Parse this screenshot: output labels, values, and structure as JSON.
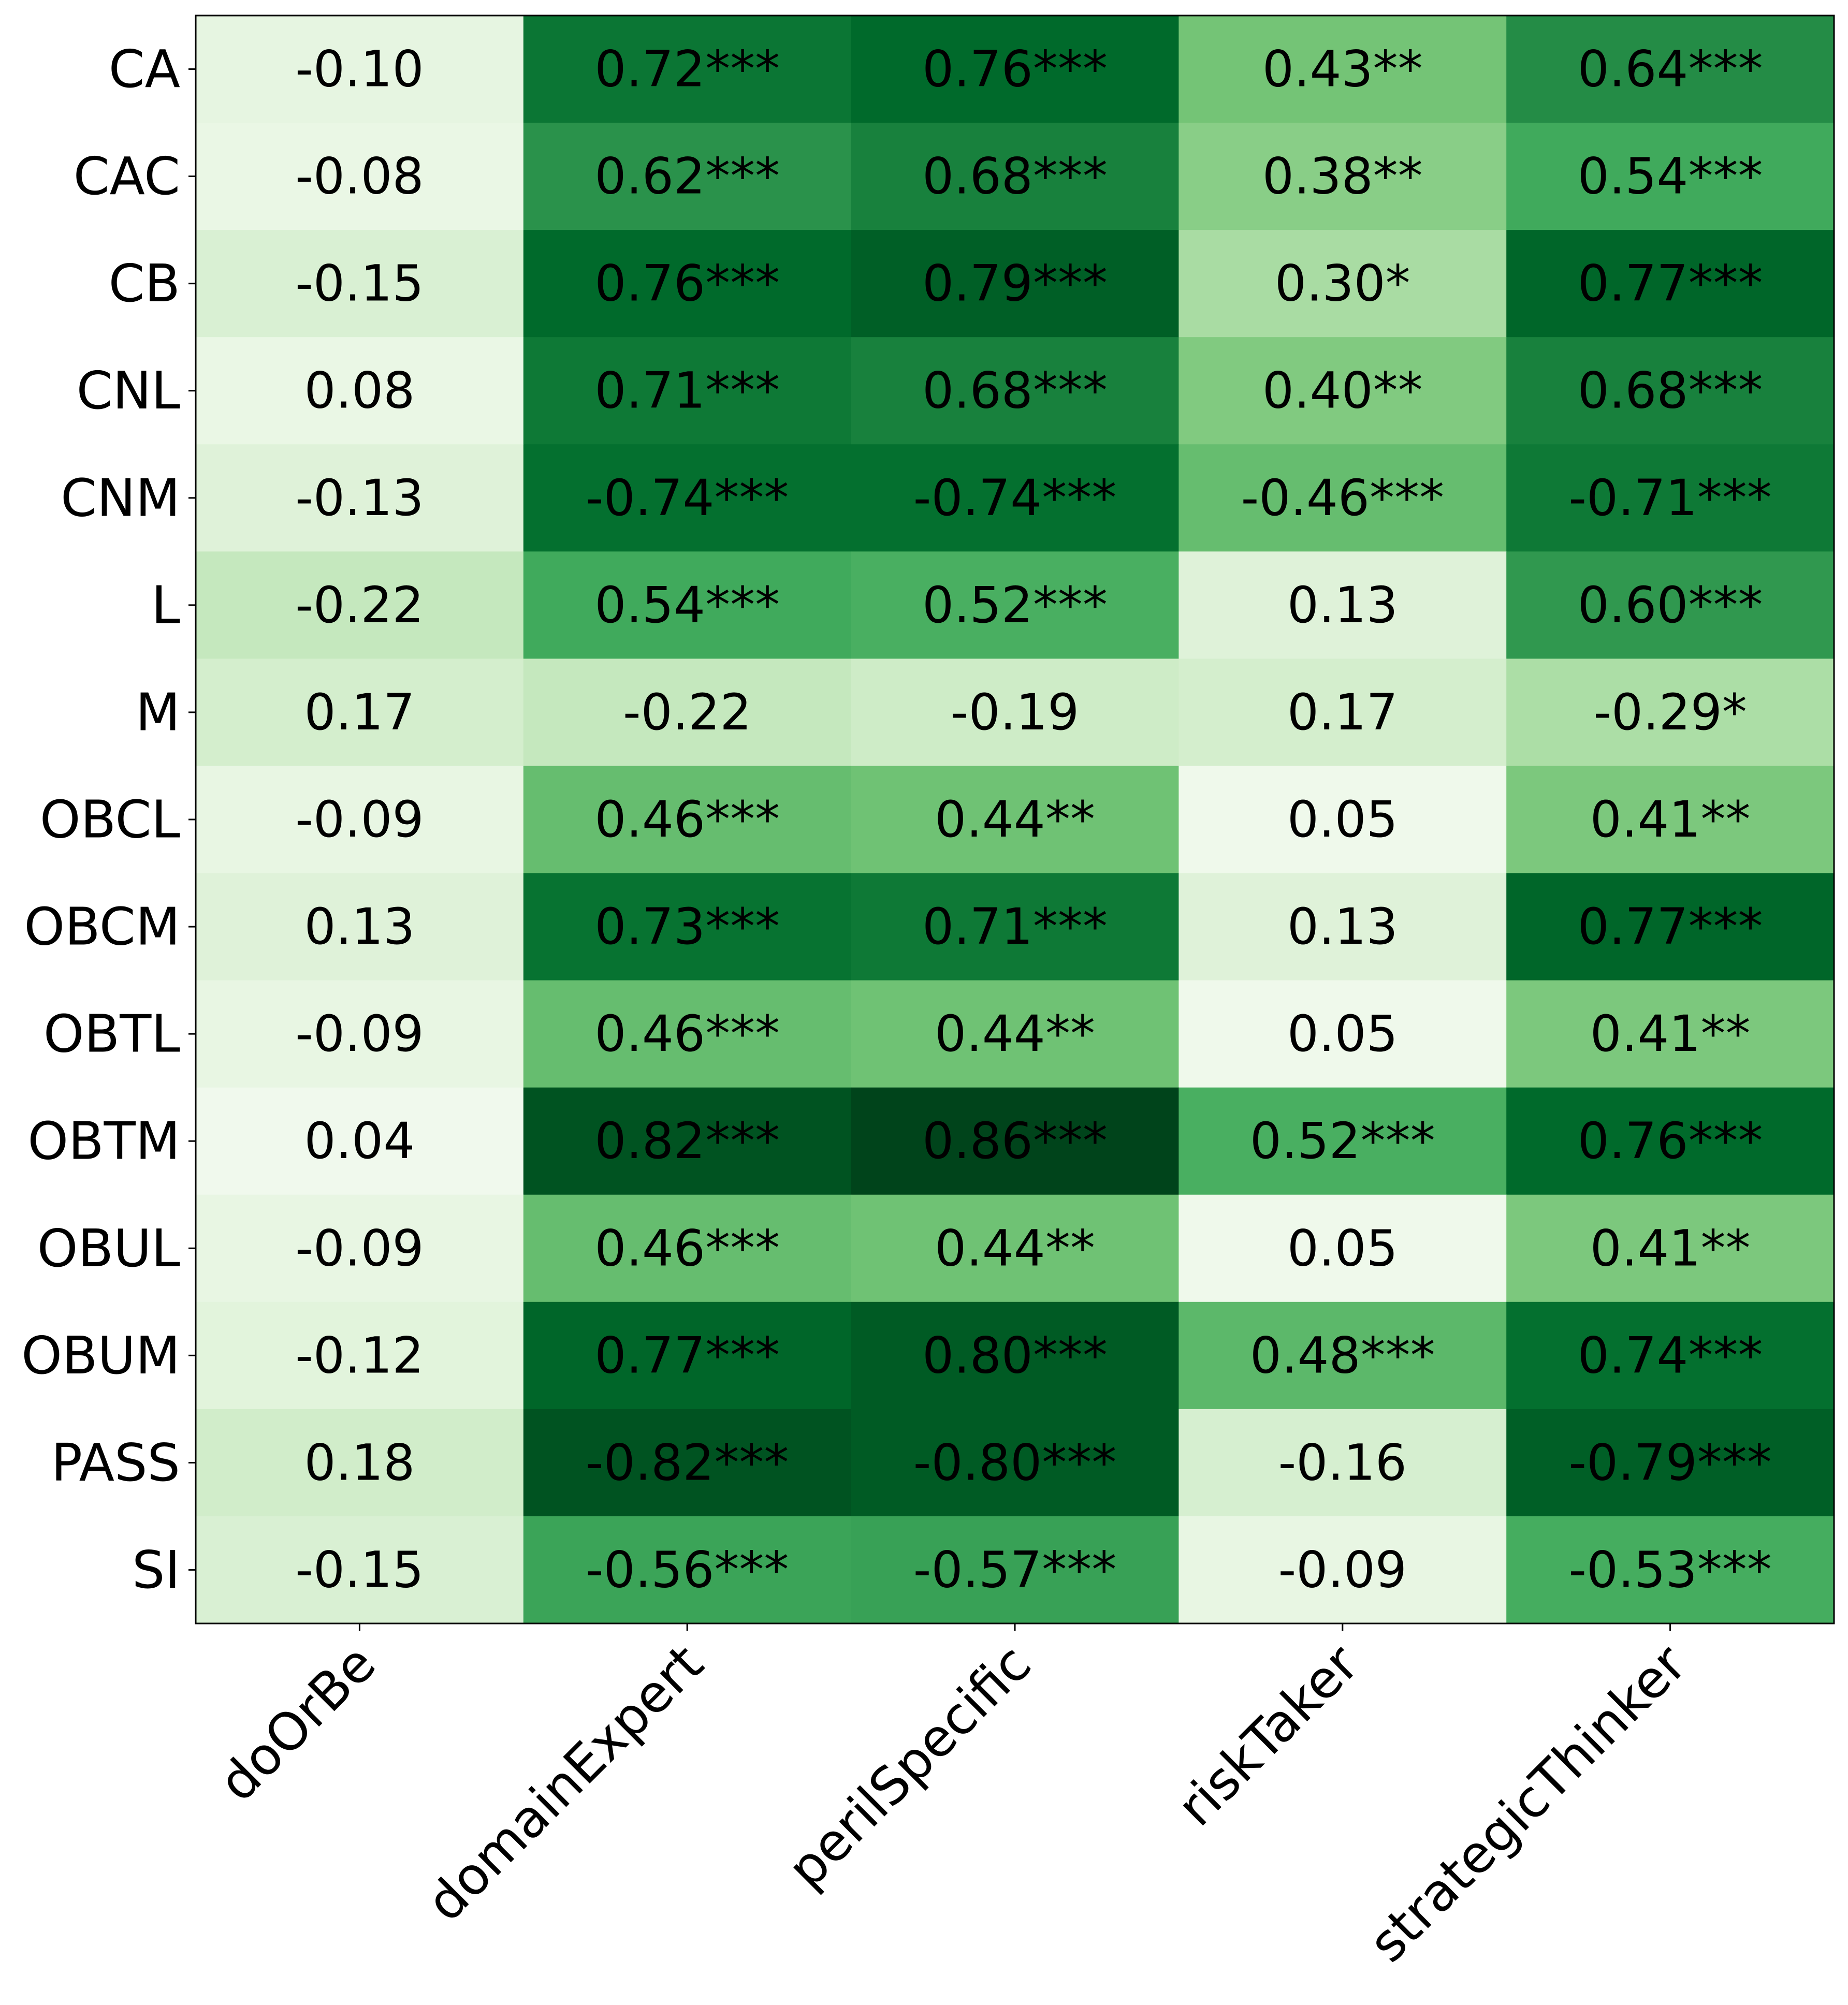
{
  "chart_data": {
    "type": "heatmap",
    "title": "",
    "xlabel": "",
    "ylabel": "",
    "colormap": "Greens",
    "color_scale": {
      "low": "#f7fcf5",
      "high": "#00441b",
      "stops": [
        "#f7fcf5",
        "#e5f5e0",
        "#c7e9c0",
        "#a1d99b",
        "#74c476",
        "#41ab5d",
        "#238b45",
        "#006d2c",
        "#00441b"
      ]
    },
    "color_by": "absolute value",
    "color_range": [
      0,
      0.86
    ],
    "columns": [
      "doOrBe",
      "domainExpert",
      "perilSpecific",
      "riskTaker",
      "strategicThinker"
    ],
    "rows": [
      "CA",
      "CAC",
      "CB",
      "CNL",
      "CNM",
      "L",
      "M",
      "OBCL",
      "OBCM",
      "OBTL",
      "OBTM",
      "OBUL",
      "OBUM",
      "PASS",
      "SI"
    ],
    "values": [
      [
        -0.1,
        0.72,
        0.76,
        0.43,
        0.64
      ],
      [
        -0.08,
        0.62,
        0.68,
        0.38,
        0.54
      ],
      [
        -0.15,
        0.76,
        0.79,
        0.3,
        0.77
      ],
      [
        0.08,
        0.71,
        0.68,
        0.4,
        0.68
      ],
      [
        -0.13,
        -0.74,
        -0.74,
        -0.46,
        -0.71
      ],
      [
        -0.22,
        0.54,
        0.52,
        0.13,
        0.6
      ],
      [
        0.17,
        -0.22,
        -0.19,
        0.17,
        -0.29
      ],
      [
        -0.09,
        0.46,
        0.44,
        0.05,
        0.41
      ],
      [
        0.13,
        0.73,
        0.71,
        0.13,
        0.77
      ],
      [
        -0.09,
        0.46,
        0.44,
        0.05,
        0.41
      ],
      [
        0.04,
        0.82,
        0.86,
        0.52,
        0.76
      ],
      [
        -0.09,
        0.46,
        0.44,
        0.05,
        0.41
      ],
      [
        -0.12,
        0.77,
        0.8,
        0.48,
        0.74
      ],
      [
        0.18,
        -0.82,
        -0.8,
        -0.16,
        -0.79
      ],
      [
        -0.15,
        -0.56,
        -0.57,
        -0.09,
        -0.53
      ]
    ],
    "labels": [
      [
        "-0.10",
        "0.72***",
        "0.76***",
        "0.43**",
        "0.64***"
      ],
      [
        "-0.08",
        "0.62***",
        "0.68***",
        "0.38**",
        "0.54***"
      ],
      [
        "-0.15",
        "0.76***",
        "0.79***",
        "0.30*",
        "0.77***"
      ],
      [
        "0.08",
        "0.71***",
        "0.68***",
        "0.40**",
        "0.68***"
      ],
      [
        "-0.13",
        "-0.74***",
        "-0.74***",
        "-0.46***",
        "-0.71***"
      ],
      [
        "-0.22",
        "0.54***",
        "0.52***",
        "0.13",
        "0.60***"
      ],
      [
        "0.17",
        "-0.22",
        "-0.19",
        "0.17",
        "-0.29*"
      ],
      [
        "-0.09",
        "0.46***",
        "0.44**",
        "0.05",
        "0.41**"
      ],
      [
        "0.13",
        "0.73***",
        "0.71***",
        "0.13",
        "0.77***"
      ],
      [
        "-0.09",
        "0.46***",
        "0.44**",
        "0.05",
        "0.41**"
      ],
      [
        "0.04",
        "0.82***",
        "0.86***",
        "0.52***",
        "0.76***"
      ],
      [
        "-0.09",
        "0.46***",
        "0.44**",
        "0.05",
        "0.41**"
      ],
      [
        "-0.12",
        "0.77***",
        "0.80***",
        "0.48***",
        "0.74***"
      ],
      [
        "0.18",
        "-0.82***",
        "-0.80***",
        "-0.16",
        "-0.79***"
      ],
      [
        "-0.15",
        "-0.56***",
        "-0.57***",
        "-0.09",
        "-0.53***"
      ]
    ],
    "legend": "none",
    "grid": false
  }
}
